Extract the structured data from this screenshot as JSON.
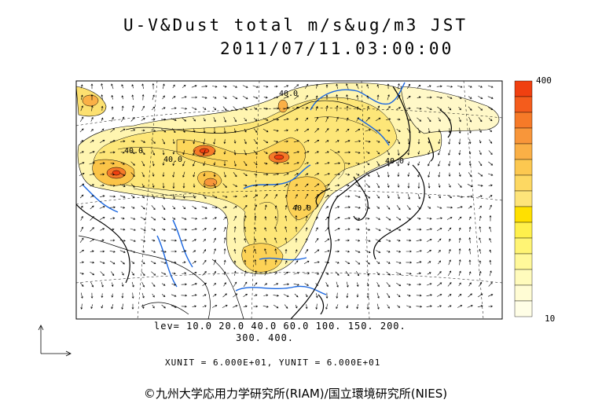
{
  "title": {
    "line1": "U-V&Dust total m/s&ug/m3 JST",
    "line2": "2011/07/11.03:00:00"
  },
  "legend_text": {
    "levels_line1": "lev= 10.0 20.0 40.0 60.0 100. 150. 200.",
    "levels_line2": "300. 400.",
    "units": "XUNIT = 6.000E+01, YUNIT = 6.000E+01"
  },
  "colorbar": {
    "max_label": "400",
    "min_label": "10",
    "colors": [
      "#f04010",
      "#f45c1c",
      "#f67a28",
      "#f8963a",
      "#fab046",
      "#fcc850",
      "#fdd862",
      "#fee47a",
      "#ffe000",
      "#fff04c",
      "#fff474",
      "#fff89a",
      "#fffbbc",
      "#fffcd4",
      "#fffee6"
    ]
  },
  "contour_labels": [
    "40.0",
    "40.0",
    "40.0",
    "40.0",
    "40.0"
  ],
  "copyright": "©九州大学応用力学研究所(RIAM)/国立環境研究所(NIES)",
  "colors": {
    "frame": "#000000",
    "river": "#1a66e0",
    "coast": "#000000",
    "dust_low": "#fff5b0",
    "dust_mid": "#fcdc5a",
    "dust_high": "#f06020"
  }
}
